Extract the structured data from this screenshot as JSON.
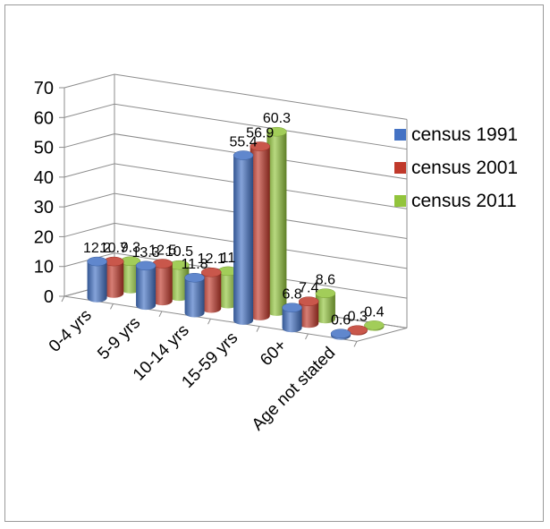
{
  "chart_data": {
    "type": "bar",
    "title": "",
    "xlabel": "",
    "ylabel": "",
    "ylim": [
      0,
      70
    ],
    "yticks": [
      0,
      10,
      20,
      30,
      40,
      50,
      60,
      70
    ],
    "grid": true,
    "legend": "right",
    "categories": [
      "0-4 yrs",
      "5-9 yrs",
      "10-14 yrs",
      "15-59 yrs",
      "60+",
      "Age not stated"
    ],
    "series": [
      {
        "name": "census 1991",
        "color": "#4472c4",
        "values": [
          12.2,
          13.3,
          11.8,
          55.4,
          6.8,
          0.6
        ]
      },
      {
        "name": "census 2001",
        "color": "#c0392b",
        "values": [
          10.7,
          12.5,
          12.1,
          56.9,
          7.4,
          0.3
        ]
      },
      {
        "name": "census 2011",
        "color": "#92c43c",
        "values": [
          9.3,
          10.5,
          11,
          60.3,
          8.6,
          0.4
        ]
      }
    ]
  }
}
